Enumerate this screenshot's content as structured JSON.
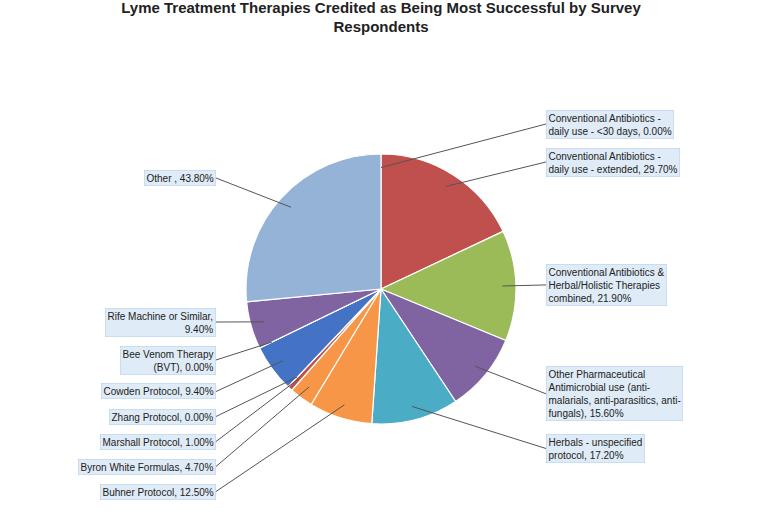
{
  "chart_data": {
    "type": "pie",
    "title": "Lyme Treatment Therapies Credited as Being Most Successful by Survey\nRespondents",
    "categories": [
      "Conventional Antibiotics -\ndaily use - <30 days, 0.00%",
      "Conventional Antibiotics -\ndaily use - extended, 29.70%",
      "Conventional Antibiotics &\nHerbal/Holistic Therapies\ncombined, 21.90%",
      "Other Pharmaceutical\nAntimicrobial use (anti-\nmalarials, anti-parasitics, anti-\nfungals), 15.60%",
      "Herbals - unspecified\nprotocol, 17.20%",
      "Buhner Protocol, 12.50%",
      "Byron White Formulas, 4.70%",
      "Marshall Protocol, 1.00%",
      "Zhang Protocol, 0.00%",
      "Cowden Protocol, 9.40%",
      "Bee Venom Therapy\n(BVT), 0.00%",
      "Rife Machine or Similar,\n9.40%",
      "Other , 43.80%"
    ],
    "values": [
      0.001,
      29.7,
      21.9,
      15.6,
      17.2,
      12.5,
      4.7,
      1.0,
      0.001,
      9.4,
      0.001,
      9.4,
      43.8
    ],
    "colors": [
      "#4472C4",
      "#C0504D",
      "#9BBB59",
      "#8064A2",
      "#4BACC6",
      "#F79646",
      "#F79646",
      "#C0504D",
      "#FF0000",
      "#4472C4",
      "#9BBB59",
      "#8064A2",
      "#95B3D7"
    ]
  }
}
